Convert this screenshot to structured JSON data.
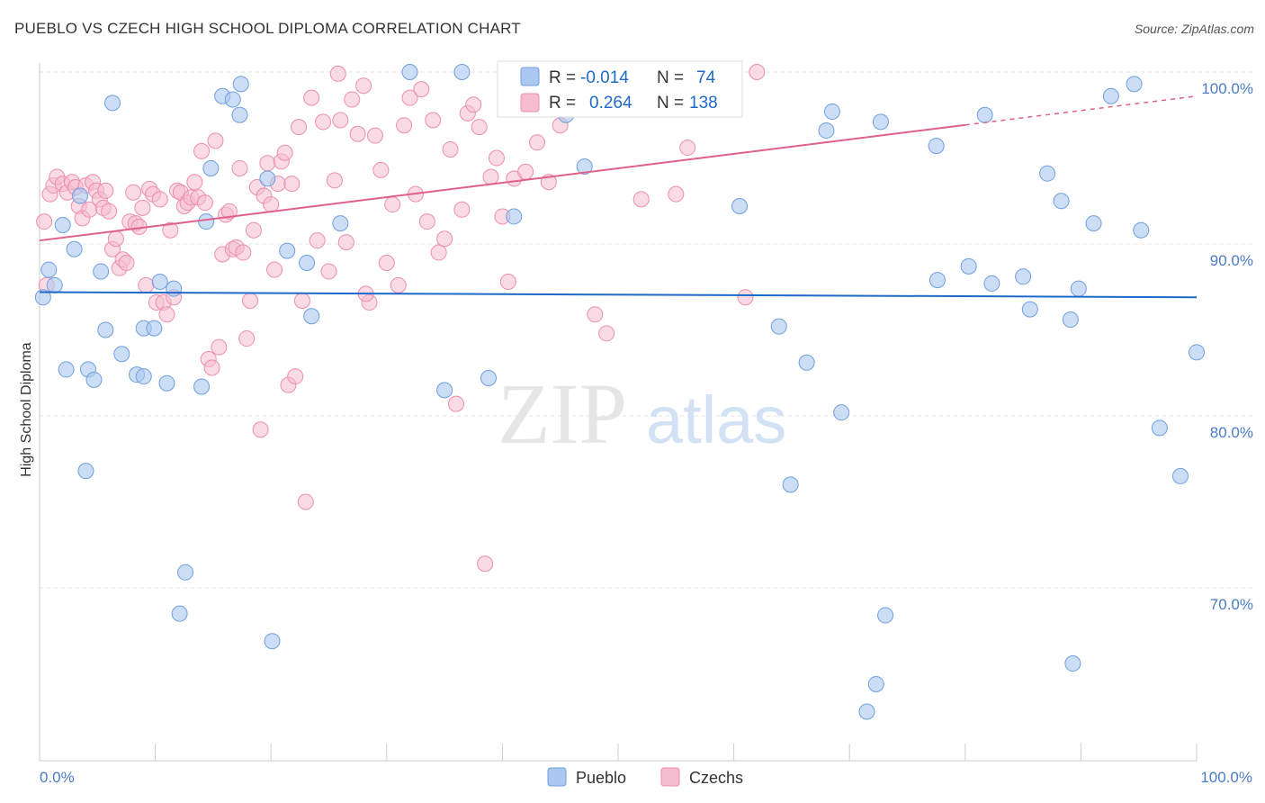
{
  "header": {
    "title": "PUEBLO VS CZECH HIGH SCHOOL DIPLOMA CORRELATION CHART",
    "source": "Source: ZipAtlas.com"
  },
  "watermark": {
    "zip": "ZIP",
    "atlas": "atlas"
  },
  "colors": {
    "pueblo_fill": "#aac8f0",
    "pueblo_stroke": "#6f9fdc",
    "pueblo_line": "#1f6ac6",
    "czech_fill": "#f6bcd0",
    "czech_stroke": "#ec8eae",
    "czech_line": "#e0608a",
    "grid": "#e3e3e3",
    "tick_text": "#4a7cc7"
  },
  "stats_legend": {
    "pueblo": {
      "r_label": "R =",
      "r_value": "-0.014",
      "n_label": "N =",
      "n_value": "74"
    },
    "czech": {
      "r_label": "R =",
      "r_value": "0.264",
      "n_label": "N =",
      "n_value": "138"
    }
  },
  "chart_data": {
    "type": "scatter",
    "title": "PUEBLO VS CZECH HIGH SCHOOL DIPLOMA CORRELATION CHART",
    "xlabel": "",
    "ylabel": "High School Diploma",
    "xlim": [
      0,
      100
    ],
    "ylim": [
      60,
      102
    ],
    "x_tick_labels": [
      "0.0%",
      "100.0%"
    ],
    "y_ticks": [
      {
        "value": 100,
        "label": "100.0%"
      },
      {
        "value": 90,
        "label": "90.0%"
      },
      {
        "value": 80,
        "label": "80.0%"
      },
      {
        "value": 70,
        "label": "70.0%"
      }
    ],
    "grid": true,
    "legend_position": "bottom-center",
    "series": [
      {
        "name": "Pueblo",
        "color": "#6f9fdc",
        "trend": {
          "x": [
            0,
            100
          ],
          "y": [
            87.2,
            86.9
          ],
          "dashed_from": null
        },
        "points": [
          [
            0.3,
            86.9
          ],
          [
            0.8,
            88.5
          ],
          [
            1.3,
            87.6
          ],
          [
            2.0,
            91.1
          ],
          [
            3.0,
            89.7
          ],
          [
            2.3,
            82.7
          ],
          [
            4.2,
            82.7
          ],
          [
            4.7,
            82.1
          ],
          [
            3.5,
            92.8
          ],
          [
            4.0,
            76.8
          ],
          [
            5.3,
            88.4
          ],
          [
            5.7,
            85.0
          ],
          [
            6.3,
            98.2
          ],
          [
            7.1,
            83.6
          ],
          [
            8.4,
            82.4
          ],
          [
            9.0,
            85.1
          ],
          [
            9.0,
            82.3
          ],
          [
            9.9,
            85.1
          ],
          [
            10.4,
            87.8
          ],
          [
            11.0,
            81.9
          ],
          [
            11.6,
            87.4
          ],
          [
            12.1,
            68.5
          ],
          [
            12.6,
            70.9
          ],
          [
            14.0,
            81.7
          ],
          [
            14.4,
            91.3
          ],
          [
            14.8,
            94.4
          ],
          [
            15.8,
            98.6
          ],
          [
            16.7,
            98.4
          ],
          [
            17.3,
            97.5
          ],
          [
            17.4,
            99.3
          ],
          [
            19.7,
            93.8
          ],
          [
            20.1,
            66.9
          ],
          [
            21.4,
            89.6
          ],
          [
            23.1,
            88.9
          ],
          [
            23.5,
            85.8
          ],
          [
            26.0,
            91.2
          ],
          [
            32.0,
            100.0
          ],
          [
            35.0,
            81.5
          ],
          [
            36.5,
            100.0
          ],
          [
            38.8,
            82.2
          ],
          [
            41.0,
            91.6
          ],
          [
            42.0,
            99.6
          ],
          [
            43.0,
            98.0
          ],
          [
            45.5,
            97.5
          ],
          [
            47.1,
            94.5
          ],
          [
            60.5,
            92.2
          ],
          [
            63.9,
            85.2
          ],
          [
            64.9,
            76.0
          ],
          [
            66.3,
            83.1
          ],
          [
            68.0,
            96.6
          ],
          [
            68.5,
            97.7
          ],
          [
            69.3,
            80.2
          ],
          [
            71.5,
            62.8
          ],
          [
            72.3,
            64.4
          ],
          [
            72.7,
            97.1
          ],
          [
            73.1,
            68.4
          ],
          [
            77.5,
            95.7
          ],
          [
            77.6,
            87.9
          ],
          [
            80.3,
            88.7
          ],
          [
            81.7,
            97.5
          ],
          [
            82.3,
            87.7
          ],
          [
            85.0,
            88.1
          ],
          [
            85.6,
            86.2
          ],
          [
            87.1,
            94.1
          ],
          [
            88.3,
            92.5
          ],
          [
            89.1,
            85.6
          ],
          [
            89.3,
            65.6
          ],
          [
            89.8,
            87.4
          ],
          [
            91.1,
            91.2
          ],
          [
            92.6,
            98.6
          ],
          [
            94.6,
            99.3
          ],
          [
            95.2,
            90.8
          ],
          [
            96.8,
            79.3
          ],
          [
            98.6,
            76.5
          ],
          [
            100.0,
            83.7
          ]
        ]
      },
      {
        "name": "Czechs",
        "color": "#ec8eae",
        "trend": {
          "x": [
            0,
            100
          ],
          "y": [
            90.2,
            98.6
          ],
          "dashed_from": 80
        },
        "points": [
          [
            0.4,
            91.3
          ],
          [
            0.6,
            87.6
          ],
          [
            0.9,
            92.9
          ],
          [
            1.2,
            93.4
          ],
          [
            1.5,
            93.9
          ],
          [
            2.0,
            93.5
          ],
          [
            2.4,
            93.0
          ],
          [
            2.8,
            93.6
          ],
          [
            3.1,
            93.3
          ],
          [
            3.4,
            92.2
          ],
          [
            3.7,
            91.5
          ],
          [
            4.0,
            93.4
          ],
          [
            4.3,
            92.0
          ],
          [
            4.6,
            93.6
          ],
          [
            4.9,
            93.1
          ],
          [
            5.2,
            92.6
          ],
          [
            5.5,
            92.1
          ],
          [
            5.7,
            93.1
          ],
          [
            6.0,
            91.9
          ],
          [
            6.3,
            89.7
          ],
          [
            6.6,
            90.3
          ],
          [
            6.9,
            88.6
          ],
          [
            7.2,
            89.1
          ],
          [
            7.5,
            88.9
          ],
          [
            7.8,
            91.3
          ],
          [
            8.1,
            93.0
          ],
          [
            8.3,
            91.2
          ],
          [
            8.6,
            91.0
          ],
          [
            8.9,
            92.1
          ],
          [
            9.2,
            87.6
          ],
          [
            9.5,
            93.2
          ],
          [
            9.8,
            92.9
          ],
          [
            10.1,
            86.6
          ],
          [
            10.4,
            92.6
          ],
          [
            10.7,
            86.6
          ],
          [
            11.0,
            85.9
          ],
          [
            11.3,
            90.8
          ],
          [
            11.6,
            86.9
          ],
          [
            11.9,
            93.1
          ],
          [
            12.2,
            93.0
          ],
          [
            12.5,
            92.2
          ],
          [
            12.8,
            92.4
          ],
          [
            13.1,
            92.7
          ],
          [
            13.4,
            93.6
          ],
          [
            13.7,
            92.7
          ],
          [
            14.0,
            95.4
          ],
          [
            14.3,
            92.4
          ],
          [
            14.6,
            83.3
          ],
          [
            14.9,
            82.8
          ],
          [
            15.2,
            96.0
          ],
          [
            15.5,
            84.0
          ],
          [
            15.8,
            89.4
          ],
          [
            16.1,
            91.7
          ],
          [
            16.4,
            91.9
          ],
          [
            16.7,
            89.7
          ],
          [
            17.0,
            89.8
          ],
          [
            17.3,
            94.4
          ],
          [
            17.6,
            89.5
          ],
          [
            17.9,
            84.5
          ],
          [
            18.2,
            86.7
          ],
          [
            18.5,
            90.8
          ],
          [
            18.8,
            93.3
          ],
          [
            19.1,
            79.2
          ],
          [
            19.4,
            92.8
          ],
          [
            19.7,
            94.7
          ],
          [
            20.0,
            92.3
          ],
          [
            20.3,
            88.5
          ],
          [
            20.6,
            93.5
          ],
          [
            20.9,
            94.8
          ],
          [
            21.2,
            95.3
          ],
          [
            21.5,
            81.8
          ],
          [
            21.8,
            93.5
          ],
          [
            22.1,
            82.3
          ],
          [
            22.4,
            96.8
          ],
          [
            22.7,
            86.7
          ],
          [
            23.0,
            75.0
          ],
          [
            23.5,
            98.5
          ],
          [
            24.0,
            90.2
          ],
          [
            24.5,
            97.1
          ],
          [
            25.0,
            88.4
          ],
          [
            25.5,
            93.7
          ],
          [
            26.0,
            97.2
          ],
          [
            26.5,
            90.1
          ],
          [
            27.0,
            98.4
          ],
          [
            27.5,
            96.4
          ],
          [
            28.0,
            99.2
          ],
          [
            28.5,
            86.6
          ],
          [
            29.0,
            96.3
          ],
          [
            29.5,
            94.3
          ],
          [
            30.0,
            88.9
          ],
          [
            30.5,
            92.3
          ],
          [
            31.0,
            87.6
          ],
          [
            31.5,
            96.9
          ],
          [
            32.0,
            98.5
          ],
          [
            32.5,
            92.9
          ],
          [
            33.0,
            99.0
          ],
          [
            33.5,
            91.3
          ],
          [
            34.0,
            97.2
          ],
          [
            34.5,
            89.5
          ],
          [
            35.0,
            90.3
          ],
          [
            35.5,
            95.5
          ],
          [
            36.0,
            80.7
          ],
          [
            36.5,
            92.0
          ],
          [
            37.0,
            97.6
          ],
          [
            37.5,
            98.1
          ],
          [
            38.0,
            96.8
          ],
          [
            38.5,
            71.4
          ],
          [
            39.0,
            93.9
          ],
          [
            39.5,
            95.0
          ],
          [
            40.0,
            91.6
          ],
          [
            41.0,
            93.8
          ],
          [
            42.0,
            94.2
          ],
          [
            43.0,
            95.9
          ],
          [
            44.0,
            93.6
          ],
          [
            45.0,
            96.9
          ],
          [
            46.0,
            98.4
          ],
          [
            47.0,
            99.9
          ],
          [
            48.0,
            85.9
          ],
          [
            49.0,
            84.8
          ],
          [
            50.0,
            100.0
          ],
          [
            52.0,
            92.6
          ],
          [
            54.0,
            100.0
          ],
          [
            55.0,
            92.9
          ],
          [
            56.0,
            95.6
          ],
          [
            58.0,
            100.0
          ],
          [
            61.0,
            86.9
          ],
          [
            62.0,
            100.0
          ],
          [
            28.2,
            87.1
          ],
          [
            25.8,
            99.9
          ],
          [
            40.5,
            87.8
          ]
        ]
      }
    ]
  },
  "bottom_legend": {
    "pueblo_label": "Pueblo",
    "czech_label": "Czechs"
  }
}
